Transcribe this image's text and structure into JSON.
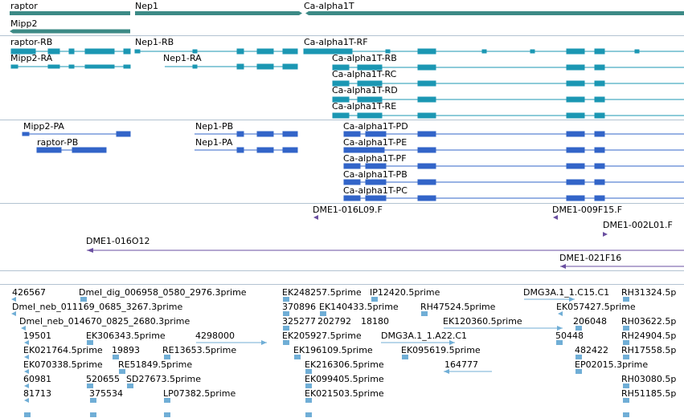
{
  "tracks": {
    "genes": {
      "color": "#3c8a86",
      "items": [
        {
          "label": "raptor"
        },
        {
          "label": "Nep1"
        },
        {
          "label": "Ca-alpha1T"
        },
        {
          "label": "Mipp2"
        }
      ]
    },
    "transcripts": {
      "color": "#1b97b3",
      "items": [
        {
          "label": "raptor-RB"
        },
        {
          "label": "Nep1-RB"
        },
        {
          "label": "Ca-alpha1T-RF"
        },
        {
          "label": "Mipp2-RA"
        },
        {
          "label": "Nep1-RA"
        },
        {
          "label": "Ca-alpha1T-RB"
        },
        {
          "label": "Ca-alpha1T-RC"
        },
        {
          "label": "Ca-alpha1T-RD"
        },
        {
          "label": "Ca-alpha1T-RE"
        }
      ]
    },
    "proteins": {
      "color": "#3264c8",
      "items": [
        {
          "label": "Mipp2-PA"
        },
        {
          "label": "Nep1-PB"
        },
        {
          "label": "Ca-alpha1T-PD"
        },
        {
          "label": "raptor-PB"
        },
        {
          "label": "Nep1-PA"
        },
        {
          "label": "Ca-alpha1T-PE"
        },
        {
          "label": "Ca-alpha1T-PF"
        },
        {
          "label": "Ca-alpha1T-PB"
        },
        {
          "label": "Ca-alpha1T-PC"
        }
      ]
    },
    "bacs": {
      "color": "#6a4fa0",
      "items": [
        {
          "label": "DME1-016L09.F"
        },
        {
          "label": "DME1-009F15.F"
        },
        {
          "label": "DME1-002L01.F"
        },
        {
          "label": "DME1-016O12"
        },
        {
          "label": "DME1-021F16"
        }
      ]
    },
    "ests": {
      "color": "#70aed6",
      "items": [
        {
          "label": "426567"
        },
        {
          "label": "Dmel_dig_006958_0580_2976.3prime"
        },
        {
          "label": "EK248257.5prime"
        },
        {
          "label": "IP12420.5prime"
        },
        {
          "label": "DMG3A.1_1.C15.C1"
        },
        {
          "label": "RH31324.5p"
        },
        {
          "label": "Dmel_neb_011169_0685_3267.3prime"
        },
        {
          "label": "370896"
        },
        {
          "label": "EK140433.5prime"
        },
        {
          "label": "RH47524.5prime"
        },
        {
          "label": "EK057427.5prime"
        },
        {
          "label": "Dmel_neb_014670_0825_2680.3prime"
        },
        {
          "label": "325277"
        },
        {
          "label": "202792"
        },
        {
          "label": "18180"
        },
        {
          "label": "EK120360.5prime"
        },
        {
          "label": "206048"
        },
        {
          "label": "RH03622.5p"
        },
        {
          "label": "19501"
        },
        {
          "label": "EK306343.5prime"
        },
        {
          "label": "4298000"
        },
        {
          "label": "EK205927.5prime"
        },
        {
          "label": "DMG3A.1_1.A22.C1"
        },
        {
          "label": "50448"
        },
        {
          "label": "RH24904.5p"
        },
        {
          "label": "EK021764.5prime"
        },
        {
          "label": "19893"
        },
        {
          "label": "RE13653.5prime"
        },
        {
          "label": "EK196109.5prime"
        },
        {
          "label": "EK095619.5prime"
        },
        {
          "label": "482422"
        },
        {
          "label": "RH17558.5p"
        },
        {
          "label": "EK070338.5prime"
        },
        {
          "label": "RE51849.5prime"
        },
        {
          "label": "EK216306.5prime"
        },
        {
          "label": "164777"
        },
        {
          "label": "EP02015.3prime"
        },
        {
          "label": "60981"
        },
        {
          "label": "520655"
        },
        {
          "label": "SD27673.5prime"
        },
        {
          "label": "EK099405.5prime"
        },
        {
          "label": "RH03080.5p"
        },
        {
          "label": "81713"
        },
        {
          "label": "375534"
        },
        {
          "label": "LP07382.5prime"
        },
        {
          "label": "EK021503.5prime"
        },
        {
          "label": "RH51185.5p"
        }
      ]
    }
  }
}
